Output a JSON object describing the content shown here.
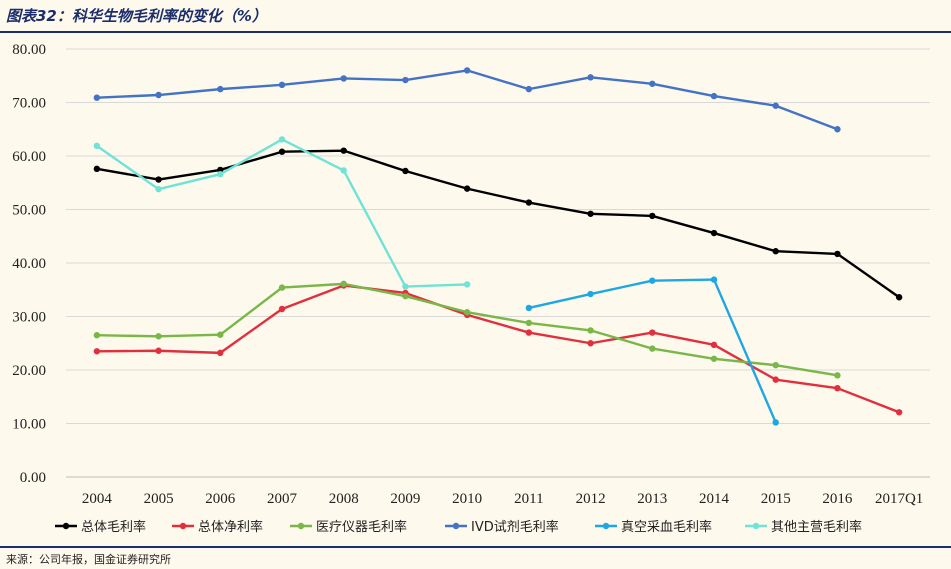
{
  "header": {
    "title": "图表32：科华生物毛利率的变化（%）"
  },
  "footer": {
    "source": "来源：公司年报，国金证券研究所"
  },
  "chart_data": {
    "type": "line",
    "title": "",
    "xlabel": "",
    "ylabel": "",
    "categories": [
      "2004",
      "2005",
      "2006",
      "2007",
      "2008",
      "2009",
      "2010",
      "2011",
      "2012",
      "2013",
      "2014",
      "2015",
      "2016",
      "2017Q1"
    ],
    "ylim": [
      0,
      80
    ],
    "yticks": [
      "0.00",
      "10.00",
      "20.00",
      "30.00",
      "40.00",
      "50.00",
      "60.00",
      "70.00",
      "80.00"
    ],
    "grid": true,
    "legend_position": "bottom",
    "series": [
      {
        "name": "总体毛利率",
        "color": "#000000",
        "values": [
          57.6,
          55.6,
          57.4,
          60.8,
          61.0,
          57.2,
          53.9,
          51.3,
          49.2,
          48.8,
          45.6,
          42.2,
          41.7,
          33.6
        ]
      },
      {
        "name": "总体净利率",
        "color": "#e0303e",
        "values": [
          23.5,
          23.6,
          23.2,
          31.4,
          35.8,
          34.4,
          30.3,
          27.0,
          25.0,
          27.0,
          24.7,
          18.2,
          16.6,
          12.1
        ]
      },
      {
        "name": "医疗仪器毛利率",
        "color": "#7ab648",
        "values": [
          26.5,
          26.3,
          26.6,
          35.4,
          36.1,
          33.8,
          30.8,
          28.8,
          27.4,
          24.0,
          22.1,
          20.9,
          19.0,
          null
        ]
      },
      {
        "name": "IVD试剂毛利率",
        "color": "#4472c4",
        "values": [
          70.9,
          71.4,
          72.5,
          73.3,
          74.5,
          74.2,
          76.0,
          72.5,
          74.7,
          73.5,
          71.2,
          69.4,
          65.0,
          null
        ]
      },
      {
        "name": "真空采血毛利率",
        "color": "#1ea7e4",
        "values": [
          null,
          null,
          null,
          null,
          null,
          null,
          null,
          31.6,
          34.2,
          36.7,
          36.9,
          10.2,
          null,
          null
        ]
      },
      {
        "name": "其他主营毛利率",
        "color": "#6fe3d6",
        "values": [
          61.9,
          53.8,
          56.6,
          63.1,
          57.3,
          35.6,
          36.0,
          null,
          null,
          null,
          null,
          null,
          null,
          null
        ]
      }
    ]
  }
}
